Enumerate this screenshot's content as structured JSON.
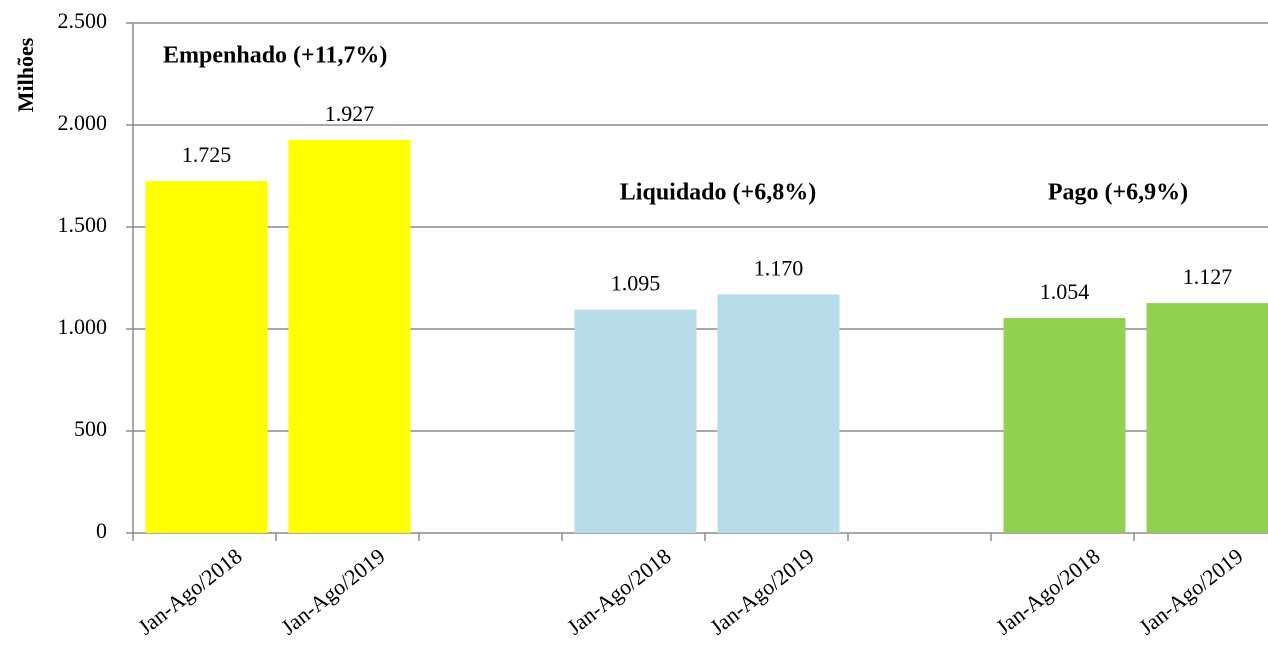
{
  "chart_data": {
    "type": "bar",
    "y_label": "Milhões",
    "categories": [
      "Jan-Ago/2018",
      "Jan-Ago/2019",
      null,
      "Jan-Ago/2018",
      "Jan-Ago/2019",
      null,
      "Jan-Ago/2018",
      "Jan-Ago/2019"
    ],
    "values": [
      1725,
      1927,
      null,
      1095,
      1170,
      null,
      1054,
      1127
    ],
    "value_labels": [
      "1.725",
      "1.927",
      null,
      "1.095",
      "1.170",
      null,
      "1.054",
      "1.127"
    ],
    "colors": [
      "#ffff00",
      "#ffff00",
      null,
      "#b7dde8",
      "#b7dde8",
      null,
      "#92d050",
      "#92d050"
    ],
    "annotations": [
      "Empenhado (+11,7%)",
      "Liquidado (+6,8%)",
      "Pago (+6,9%)"
    ],
    "ylim": [
      0,
      2500
    ],
    "yticks": [
      0,
      500,
      {
        "value": 1000,
        "label": "1.000"
      },
      {
        "value": 1500,
        "label": "1.500"
      },
      {
        "value": 2000,
        "label": "2.000"
      },
      {
        "value": 2500,
        "label": "2.500"
      }
    ],
    "grid": true
  }
}
